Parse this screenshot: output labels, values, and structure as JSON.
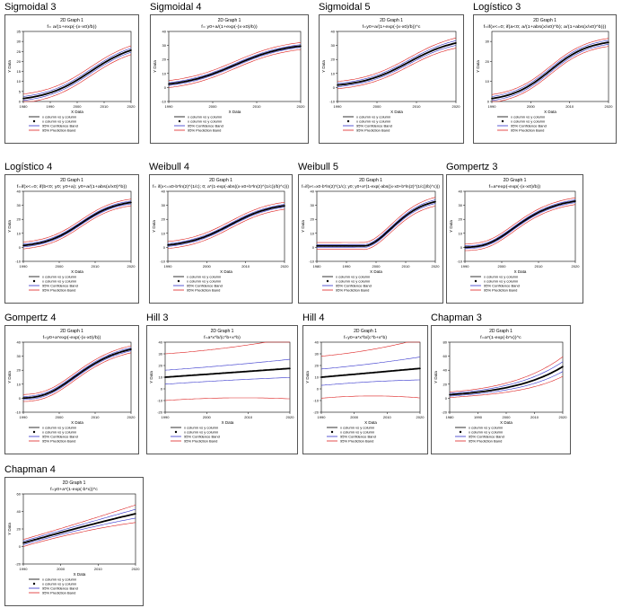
{
  "graph_heading": "2D Graph 1",
  "axis_labels": {
    "x": "X Data",
    "y": "Y Data"
  },
  "legend_entries": [
    "x column vs y column",
    "x column vs y column",
    "95% Confidence Band",
    "95% Prediction Band"
  ],
  "colors": {
    "data": "#000000",
    "confidence": "#3333cc",
    "prediction": "#dd2222",
    "frame": "#555555"
  },
  "chart_data": [
    {
      "type": "line",
      "title": "Sigmoidal 3",
      "equation": "f= a/(1+exp(-(x-x0)/b))",
      "xlim": [
        1980,
        2020
      ],
      "ylim": [
        0,
        35
      ],
      "xticks": [
        1980,
        1990,
        2000,
        2010,
        2020
      ],
      "yticks": [
        0,
        5,
        10,
        15,
        20,
        25,
        30,
        35
      ],
      "model": {
        "kind": "sigmoid",
        "asym": 30,
        "mid": 2005,
        "scale": 8.5
      },
      "conf_width": 1.0,
      "pred_width": 2.2,
      "growth": 0
    },
    {
      "type": "line",
      "title": "Sigmoidal 4",
      "equation": "f= y0+a/(1+exp(-(x-x0)/b))",
      "xlim": [
        1990,
        2020
      ],
      "ylim": [
        -10,
        40
      ],
      "xticks": [
        1990,
        2000,
        2010,
        2020
      ],
      "yticks": [
        -10,
        0,
        10,
        20,
        30,
        40
      ],
      "model": {
        "kind": "sigmoid",
        "asym": 32,
        "mid": 2005,
        "scale": 6
      },
      "conf_width": 1.0,
      "pred_width": 2.5,
      "growth": 0
    },
    {
      "type": "line",
      "title": "Sigmoidal 5",
      "equation": "f=y0+a/(1+exp(-(x-x0)/b))^c",
      "xlim": [
        1990,
        2020
      ],
      "ylim": [
        -10,
        40
      ],
      "xticks": [
        1990,
        2000,
        2010,
        2020
      ],
      "yticks": [
        -10,
        0,
        10,
        20,
        30,
        40
      ],
      "model": {
        "kind": "sigmoid",
        "asym": 36,
        "mid": 2008,
        "scale": 6
      },
      "conf_width": 1.2,
      "pred_width": 2.6,
      "growth": 0.4
    },
    {
      "type": "line",
      "title": "Logístico 3",
      "equation": "f=if(x<=0; if(a<0; a/(1+abs(x/x0)^b); a/(1+abs(x/x0)^b)))",
      "xlim": [
        1990,
        2020
      ],
      "ylim": [
        0,
        35
      ],
      "xticks": [
        1990,
        2000,
        2010,
        2020
      ],
      "yticks": [
        0,
        10,
        20,
        30
      ],
      "model": {
        "kind": "sigmoid",
        "asym": 31,
        "mid": 2005,
        "scale": 5
      },
      "conf_width": 1.0,
      "pred_width": 2.0,
      "growth": 0
    },
    {
      "type": "line",
      "title": "Logístico 4",
      "equation": "f=if(x<=0; if(b<0; y0; y0+a); y0+a/(1+abs(x/x0)^b))",
      "xlim": [
        1990,
        2020
      ],
      "ylim": [
        -10,
        40
      ],
      "xticks": [
        1990,
        2000,
        2010,
        2020
      ],
      "yticks": [
        -10,
        0,
        10,
        20,
        30,
        40
      ],
      "model": {
        "kind": "sigmoid",
        "asym": 34,
        "mid": 2006,
        "scale": 5
      },
      "conf_width": 1.0,
      "pred_width": 2.4,
      "growth": 0
    },
    {
      "type": "line",
      "title": "Weibull 4",
      "equation": "f= if(x<=x0-b*ln(2)^(1/c); 0; a*(1-exp(-abs((x-x0+b*ln(2)^(1/c))/b)^c)))",
      "xlim": [
        1990,
        2020
      ],
      "ylim": [
        -10,
        40
      ],
      "xticks": [
        1990,
        2000,
        2010,
        2020
      ],
      "yticks": [
        -10,
        0,
        10,
        20,
        30,
        40
      ],
      "model": {
        "kind": "sigmoid",
        "asym": 32,
        "mid": 2006,
        "scale": 5.5
      },
      "conf_width": 1.0,
      "pred_width": 2.5,
      "growth": 0
    },
    {
      "type": "line",
      "title": "Weibull 5",
      "equation": "f=if(x<=x0-b*ln(2)^(1/c); y0; y0+a*(1-exp(-abs((x-x0+b*ln(2)^(1/c))/b)^c)))",
      "xlim": [
        1980,
        2020
      ],
      "ylim": [
        -10,
        40
      ],
      "xticks": [
        1980,
        1990,
        2000,
        2010,
        2020
      ],
      "yticks": [
        -10,
        0,
        10,
        20,
        30,
        40
      ],
      "model": {
        "kind": "weibull",
        "base": 1,
        "start": 1996,
        "asym": 34,
        "scale": 14
      },
      "conf_width": 1.0,
      "pred_width": 2.4,
      "growth": 0.3
    },
    {
      "type": "line",
      "title": "Gompertz 3",
      "equation": "f=a*exp(-exp(-(x-x0)/b))",
      "xlim": [
        1990,
        2020
      ],
      "ylim": [
        -10,
        40
      ],
      "xticks": [
        1990,
        2000,
        2010,
        2020
      ],
      "yticks": [
        -10,
        0,
        10,
        20,
        30,
        40
      ],
      "model": {
        "kind": "gompertz",
        "asym": 36,
        "mid": 2003,
        "scale": 7
      },
      "conf_width": 1.0,
      "pred_width": 2.4,
      "growth": 0
    },
    {
      "type": "line",
      "title": "Gompertz 4",
      "equation": "f=y0+a*exp(-exp(-(x-x0)/b))",
      "xlim": [
        1990,
        2020
      ],
      "ylim": [
        -10,
        40
      ],
      "xticks": [
        1990,
        2000,
        2010,
        2020
      ],
      "yticks": [
        -10,
        0,
        10,
        20,
        30,
        40
      ],
      "model": {
        "kind": "gompertz",
        "asym": 40,
        "mid": 2004,
        "scale": 8
      },
      "conf_width": 1.1,
      "pred_width": 2.5,
      "growth": 0
    },
    {
      "type": "line",
      "title": "Hill 3",
      "equation": "f=a*x^b/(c^b+x^b)",
      "xlim": [
        1990,
        2020
      ],
      "ylim": [
        -20,
        40
      ],
      "xticks": [
        1990,
        2000,
        2010,
        2020
      ],
      "yticks": [
        -20,
        -10,
        0,
        10,
        20,
        30,
        40
      ],
      "model": {
        "kind": "linear",
        "y0": 10,
        "slope": 0.25
      },
      "conf_width": 6,
      "pred_width": 20,
      "growth": 0.3
    },
    {
      "type": "line",
      "title": "Hill 4",
      "equation": "f=y0+a*x^b/(c^b+x^b)",
      "xlim": [
        1990,
        2020
      ],
      "ylim": [
        -20,
        40
      ],
      "xticks": [
        1990,
        2000,
        2010,
        2020
      ],
      "yticks": [
        -20,
        -10,
        0,
        10,
        20,
        30,
        40
      ],
      "model": {
        "kind": "linear",
        "y0": 10,
        "slope": 0.25
      },
      "conf_width": 7,
      "pred_width": 18,
      "growth": 0.4
    },
    {
      "type": "line",
      "title": "Chapman 3",
      "equation": "f=a*(1-exp(-b*x))^c",
      "xlim": [
        1980,
        2020
      ],
      "ylim": [
        -20,
        80
      ],
      "xticks": [
        1980,
        1990,
        2000,
        2010,
        2020
      ],
      "yticks": [
        -20,
        0,
        20,
        40,
        60,
        80
      ],
      "model": {
        "kind": "exp",
        "a": 5,
        "rate": 0.055,
        "x0": 1980
      },
      "conf_width": 2,
      "pred_width": 4,
      "growth": 2.5
    },
    {
      "type": "line",
      "title": "Chapman 4",
      "equation": "f=y0+a*(1-exp(-b*x))^c",
      "xlim": [
        1990,
        2020
      ],
      "ylim": [
        -20,
        60
      ],
      "xticks": [
        1990,
        2000,
        2010,
        2020
      ],
      "yticks": [
        -20,
        0,
        20,
        40,
        60
      ],
      "model": {
        "kind": "exp",
        "a": -2,
        "rate": 0.04,
        "x0": 1985,
        "lin": 1.3
      },
      "conf_width": 2,
      "pred_width": 4,
      "growth": 1.5
    }
  ]
}
